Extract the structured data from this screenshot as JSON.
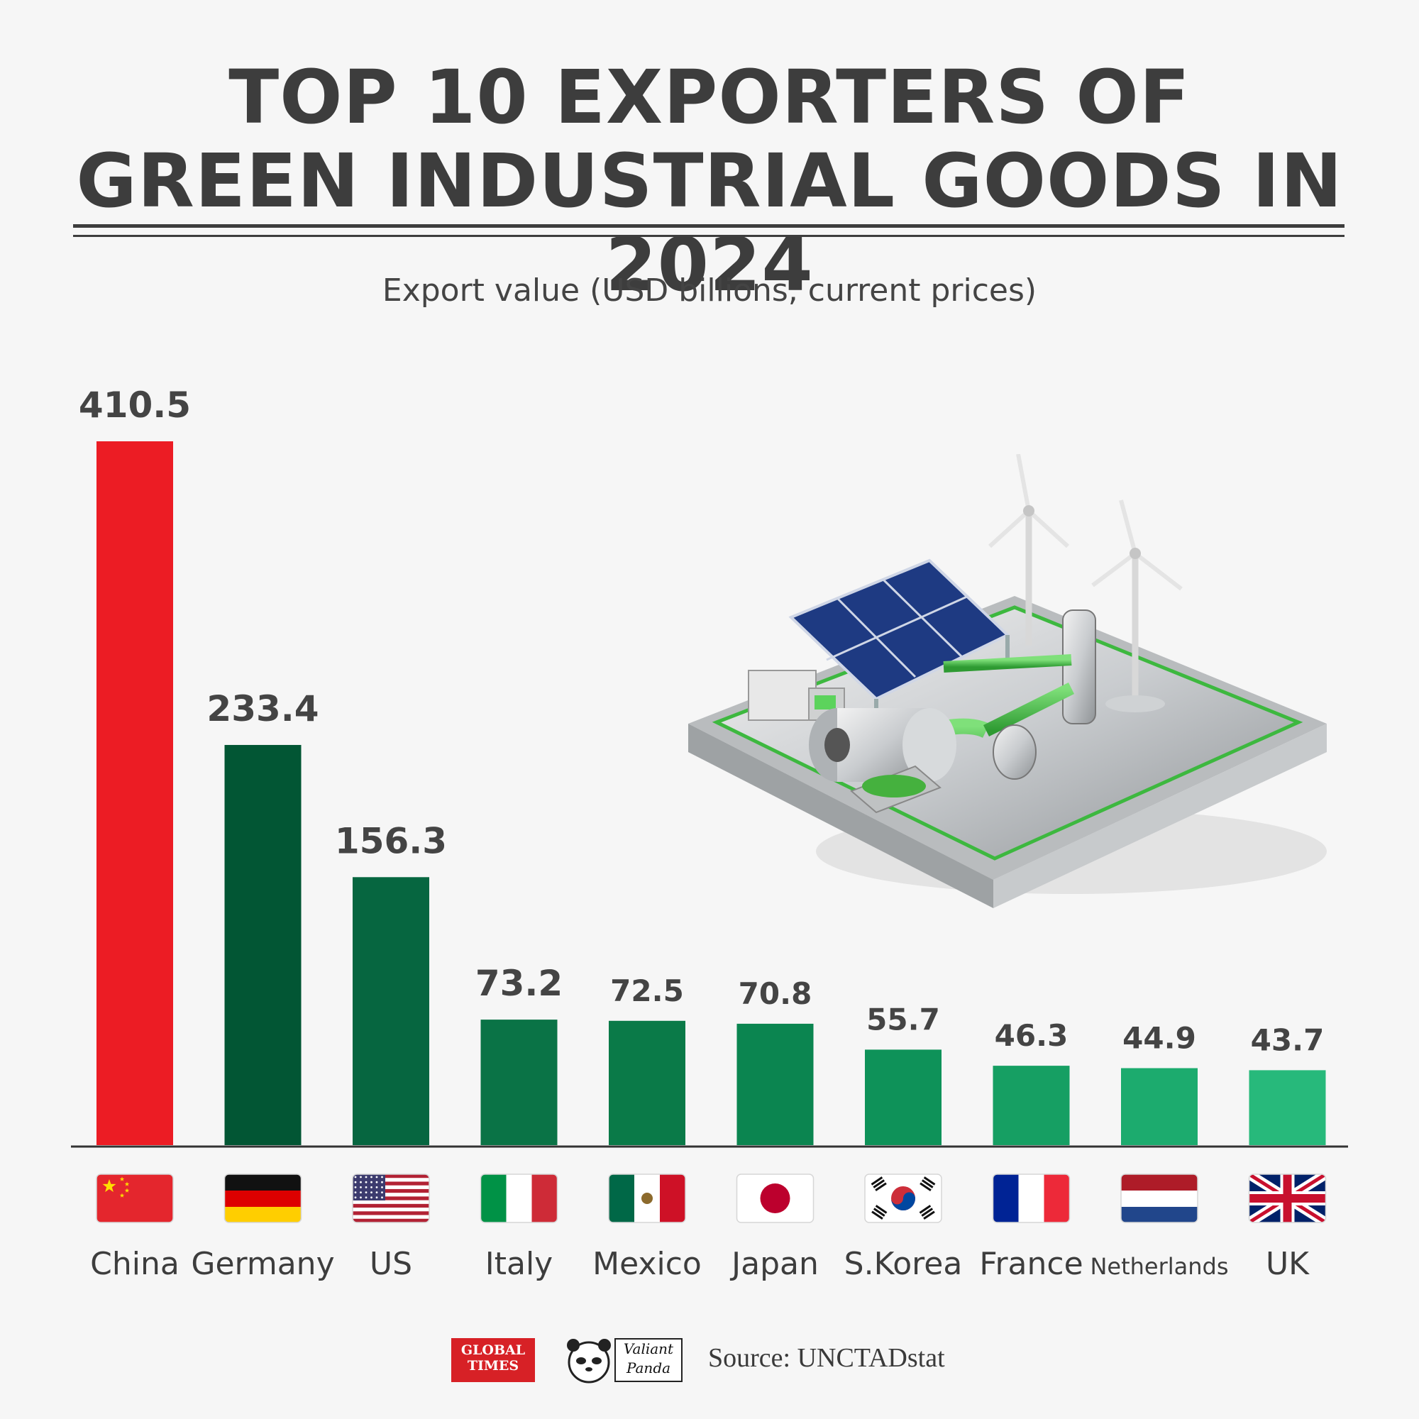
{
  "header": {
    "title_line1": "TOP 10 EXPORTERS OF",
    "title_line2": "GREEN INDUSTRIAL GOODS IN 2024",
    "subtitle": "Export value (USD billions, current prices)"
  },
  "chart_data": {
    "type": "bar",
    "title": "TOP 10 EXPORTERS OF GREEN INDUSTRIAL GOODS IN 2024",
    "subtitle": "Export value (USD billions, current prices)",
    "categories": [
      "China",
      "Germany",
      "US",
      "Italy",
      "Mexico",
      "Japan",
      "S.Korea",
      "France",
      "Netherlands",
      "UK"
    ],
    "values": [
      410.5,
      233.4,
      156.3,
      73.2,
      72.5,
      70.8,
      55.7,
      46.3,
      44.9,
      43.7
    ],
    "value_labels": [
      "410.5",
      "233.4",
      "156.3",
      "73.2",
      "72.5",
      "70.8",
      "55.7",
      "46.3",
      "44.9",
      "43.7"
    ],
    "bar_colors": [
      "#ec1c24",
      "#025634",
      "#066640",
      "#0a7346",
      "#0a7a48",
      "#0b8550",
      "#0e9259",
      "#169f63",
      "#1cab6e",
      "#27b97b"
    ],
    "ylim": [
      0,
      410.5
    ],
    "grid": false,
    "legend": "none",
    "flags": [
      "china-flag",
      "germany-flag",
      "us-flag",
      "italy-flag",
      "mexico-flag",
      "japan-flag",
      "south-korea-flag",
      "france-flag",
      "netherlands-flag",
      "uk-flag"
    ]
  },
  "illustration": {
    "icon": "green-industry-platform-illustration"
  },
  "footer": {
    "logo1_line1": "GLOBAL",
    "logo1_line2": "TIMES",
    "logo2_line1": "Valiant",
    "logo2_line2": "Panda",
    "source": "Source: UNCTADstat"
  }
}
